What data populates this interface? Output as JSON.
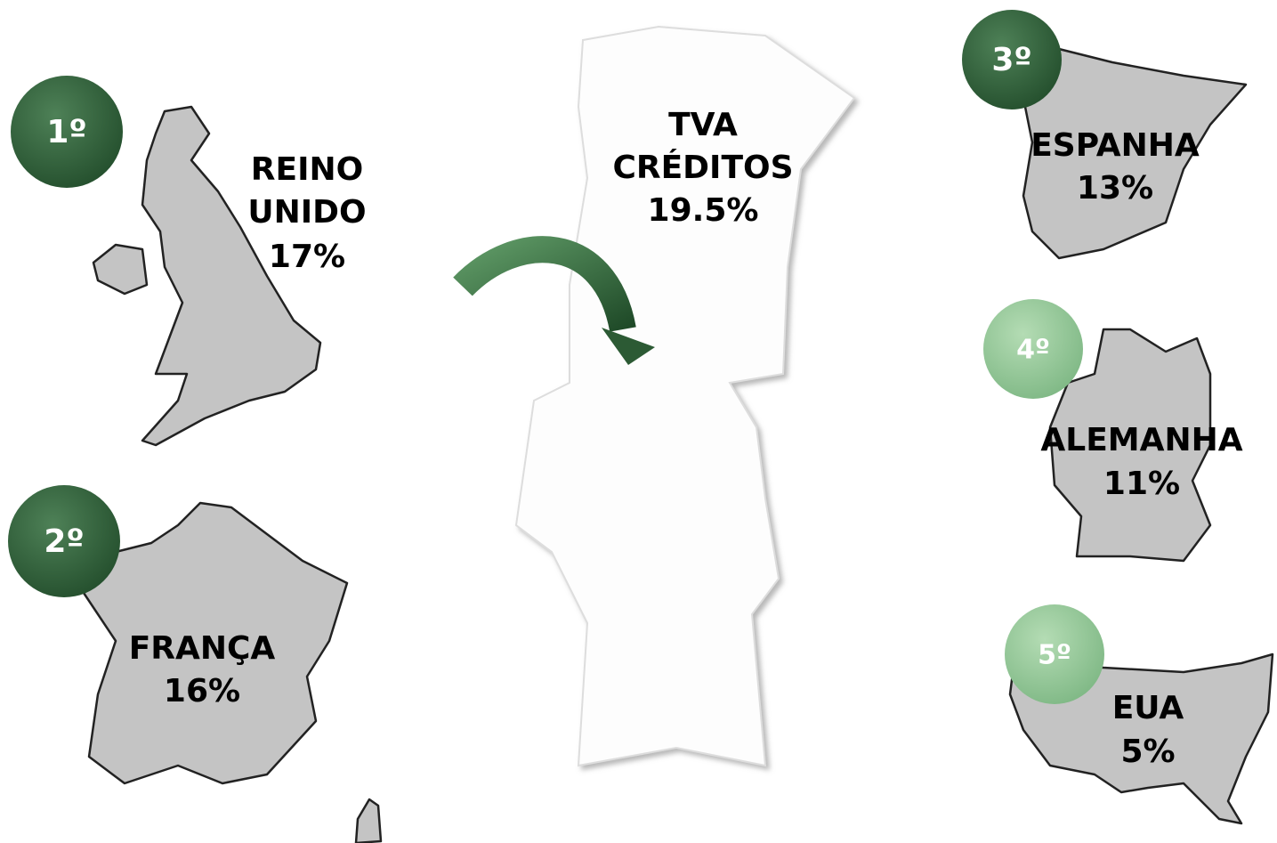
{
  "hub": {
    "lines": [
      "TVA",
      "CRÉDITOS"
    ],
    "share": "19.5%"
  },
  "countries": [
    {
      "rank": "1º",
      "lines": [
        "REINO",
        "UNIDO"
      ],
      "share": "17%"
    },
    {
      "rank": "2º",
      "lines": [
        "FRANÇA"
      ],
      "share": "16%"
    },
    {
      "rank": "3º",
      "lines": [
        "ESPANHA"
      ],
      "share": "13%"
    },
    {
      "rank": "4º",
      "lines": [
        "ALEMANHA"
      ],
      "share": "11%"
    },
    {
      "rank": "5º",
      "lines": [
        "EUA"
      ],
      "share": "5%"
    }
  ]
}
